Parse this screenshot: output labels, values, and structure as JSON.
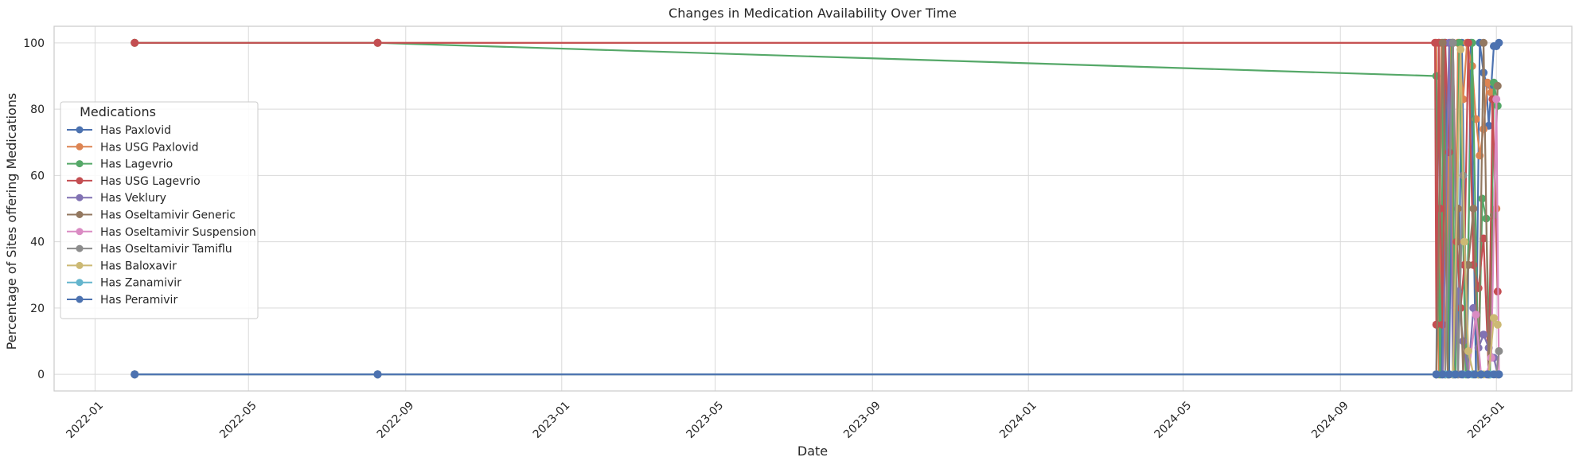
{
  "chart_data": {
    "type": "line",
    "title": "Changes in Medication Availability Over Time",
    "xlabel": "Date",
    "ylabel": "Percentage of Sites offering Medications",
    "x_tick_labels": [
      "2022-01",
      "2022-05",
      "2022-09",
      "2023-01",
      "2023-05",
      "2023-09",
      "2024-01",
      "2024-05",
      "2024-09",
      "2025-01"
    ],
    "y_tick_labels": [
      "0",
      "20",
      "40",
      "60",
      "80",
      "100"
    ],
    "ylim": [
      -5,
      105
    ],
    "xlim": [
      "2021-11-30",
      "2025-03-01"
    ],
    "grid": true,
    "legend_title": "Medications",
    "legend_placement": "center-left",
    "marker": "circle",
    "series": [
      {
        "name": "Has Paxlovid",
        "color": "#4c72b0",
        "points": [
          [
            "2022-02-01",
            0
          ],
          [
            "2022-08-10",
            0
          ],
          [
            "2024-11-15",
            0
          ],
          [
            "2024-11-17",
            100
          ],
          [
            "2024-11-19",
            0
          ],
          [
            "2024-11-22",
            100
          ],
          [
            "2024-11-25",
            0
          ],
          [
            "2024-11-28",
            100
          ],
          [
            "2024-12-02",
            0
          ],
          [
            "2024-12-05",
            100
          ],
          [
            "2024-12-09",
            0
          ],
          [
            "2024-12-12",
            100
          ],
          [
            "2024-12-16",
            0
          ],
          [
            "2024-12-19",
            100
          ],
          [
            "2024-12-22",
            91
          ],
          [
            "2024-12-24",
            88
          ],
          [
            "2024-12-26",
            75
          ],
          [
            "2024-12-28",
            87
          ],
          [
            "2024-12-30",
            99
          ],
          [
            "2025-01-01",
            99
          ],
          [
            "2025-01-03",
            100
          ]
        ]
      },
      {
        "name": "Has USG Paxlovid",
        "color": "#dd8452",
        "points": [
          [
            "2022-02-01",
            100
          ],
          [
            "2022-08-10",
            100
          ],
          [
            "2024-11-15",
            100
          ],
          [
            "2024-11-17",
            0
          ],
          [
            "2024-11-19",
            100
          ],
          [
            "2024-11-22",
            0
          ],
          [
            "2024-11-26",
            100
          ],
          [
            "2024-11-29",
            0
          ],
          [
            "2024-12-02",
            100
          ],
          [
            "2024-12-06",
            83
          ],
          [
            "2024-12-09",
            100
          ],
          [
            "2024-12-13",
            93
          ],
          [
            "2024-12-16",
            77
          ],
          [
            "2024-12-19",
            66
          ],
          [
            "2024-12-22",
            74
          ],
          [
            "2024-12-25",
            88
          ],
          [
            "2024-12-28",
            85
          ],
          [
            "2025-01-01",
            50
          ]
        ]
      },
      {
        "name": "Has Lagevrio",
        "color": "#55a868",
        "points": [
          [
            "2022-02-01",
            100
          ],
          [
            "2022-08-10",
            100
          ],
          [
            "2024-11-15",
            90
          ],
          [
            "2024-11-18",
            0
          ],
          [
            "2024-11-21",
            100
          ],
          [
            "2024-11-24",
            0
          ],
          [
            "2024-11-27",
            100
          ],
          [
            "2024-11-30",
            0
          ],
          [
            "2024-12-03",
            100
          ],
          [
            "2024-12-08",
            0
          ],
          [
            "2024-12-13",
            100
          ],
          [
            "2024-12-18",
            0
          ],
          [
            "2024-12-21",
            53
          ],
          [
            "2024-12-24",
            47
          ],
          [
            "2024-12-27",
            0
          ],
          [
            "2024-12-30",
            88
          ],
          [
            "2025-01-02",
            81
          ]
        ]
      },
      {
        "name": "Has USG Lagevrio",
        "color": "#c44e52",
        "points": [
          [
            "2022-02-01",
            100
          ],
          [
            "2022-08-10",
            100
          ],
          [
            "2024-11-14",
            100
          ],
          [
            "2024-11-15",
            15
          ],
          [
            "2024-11-17",
            100
          ],
          [
            "2024-11-18",
            50
          ],
          [
            "2024-11-20",
            15
          ],
          [
            "2024-11-22",
            100
          ],
          [
            "2024-11-25",
            67
          ],
          [
            "2024-11-28",
            100
          ],
          [
            "2024-12-01",
            40
          ],
          [
            "2024-12-04",
            20
          ],
          [
            "2024-12-07",
            33
          ],
          [
            "2024-12-10",
            100
          ],
          [
            "2024-12-14",
            33
          ],
          [
            "2024-12-18",
            26
          ],
          [
            "2024-12-22",
            41
          ],
          [
            "2024-12-26",
            0
          ],
          [
            "2024-12-29",
            83
          ],
          [
            "2025-01-02",
            25
          ]
        ]
      },
      {
        "name": "Has Veklury",
        "color": "#8172b3",
        "points": [
          [
            "2022-02-01",
            0
          ],
          [
            "2022-08-10",
            0
          ],
          [
            "2024-11-15",
            0
          ],
          [
            "2024-11-20",
            0
          ],
          [
            "2024-11-25",
            100
          ],
          [
            "2024-11-28",
            0
          ],
          [
            "2024-12-02",
            25
          ],
          [
            "2024-12-06",
            10
          ],
          [
            "2024-12-10",
            0
          ],
          [
            "2024-12-14",
            20
          ],
          [
            "2024-12-18",
            8
          ],
          [
            "2024-12-22",
            12
          ],
          [
            "2024-12-26",
            8
          ],
          [
            "2024-12-30",
            5
          ],
          [
            "2025-01-02",
            0
          ]
        ]
      },
      {
        "name": "Has Oseltamivir Generic",
        "color": "#937860",
        "points": [
          [
            "2022-02-01",
            0
          ],
          [
            "2022-08-10",
            0
          ],
          [
            "2024-11-15",
            0
          ],
          [
            "2024-11-20",
            100
          ],
          [
            "2024-11-24",
            0
          ],
          [
            "2024-11-28",
            0
          ],
          [
            "2024-12-02",
            50
          ],
          [
            "2024-12-06",
            0
          ],
          [
            "2024-12-10",
            33
          ],
          [
            "2024-12-14",
            50
          ],
          [
            "2024-12-18",
            0
          ],
          [
            "2024-12-22",
            100
          ],
          [
            "2024-12-26",
            0
          ],
          [
            "2024-12-30",
            48
          ],
          [
            "2025-01-02",
            87
          ]
        ]
      },
      {
        "name": "Has Oseltamivir Suspension",
        "color": "#da8bc3",
        "points": [
          [
            "2022-02-01",
            0
          ],
          [
            "2022-08-10",
            0
          ],
          [
            "2024-11-15",
            0
          ],
          [
            "2024-11-22",
            0
          ],
          [
            "2024-11-28",
            0
          ],
          [
            "2024-12-04",
            0
          ],
          [
            "2024-12-10",
            0
          ],
          [
            "2024-12-16",
            18
          ],
          [
            "2024-12-20",
            0
          ],
          [
            "2024-12-24",
            0
          ],
          [
            "2024-12-28",
            5
          ],
          [
            "2025-01-01",
            83
          ],
          [
            "2025-01-03",
            0
          ]
        ]
      },
      {
        "name": "Has Oseltamivir Tamiflu",
        "color": "#8c8c8c",
        "points": [
          [
            "2022-02-01",
            0
          ],
          [
            "2022-08-10",
            0
          ],
          [
            "2024-11-15",
            0
          ],
          [
            "2024-11-22",
            0
          ],
          [
            "2024-11-28",
            100
          ],
          [
            "2024-12-02",
            0
          ],
          [
            "2024-12-06",
            60
          ],
          [
            "2024-12-10",
            0
          ],
          [
            "2024-12-14",
            0
          ],
          [
            "2024-12-20",
            0
          ],
          [
            "2024-12-26",
            0
          ],
          [
            "2025-01-01",
            0
          ],
          [
            "2025-01-03",
            7
          ]
        ]
      },
      {
        "name": "Has Baloxavir",
        "color": "#ccb974",
        "points": [
          [
            "2022-02-01",
            0
          ],
          [
            "2022-08-10",
            0
          ],
          [
            "2024-11-15",
            0
          ],
          [
            "2024-11-22",
            0
          ],
          [
            "2024-11-28",
            0
          ],
          [
            "2024-12-04",
            98
          ],
          [
            "2024-12-07",
            40
          ],
          [
            "2024-12-10",
            7
          ],
          [
            "2024-12-14",
            0
          ],
          [
            "2024-12-18",
            0
          ],
          [
            "2024-12-22",
            0
          ],
          [
            "2024-12-26",
            0
          ],
          [
            "2024-12-30",
            17
          ],
          [
            "2025-01-02",
            15
          ]
        ]
      },
      {
        "name": "Has Zanamivir",
        "color": "#64b5cd",
        "points": [
          [
            "2022-02-01",
            0
          ],
          [
            "2022-08-10",
            0
          ],
          [
            "2024-11-15",
            0
          ],
          [
            "2024-11-22",
            0
          ],
          [
            "2024-11-29",
            0
          ],
          [
            "2024-12-06",
            0
          ],
          [
            "2024-12-13",
            0
          ],
          [
            "2024-12-20",
            0
          ],
          [
            "2024-12-27",
            0
          ],
          [
            "2025-01-03",
            0
          ]
        ]
      },
      {
        "name": "Has Peramivir",
        "color": "#4c72b0",
        "points": [
          [
            "2022-02-01",
            0
          ],
          [
            "2022-08-10",
            0
          ],
          [
            "2024-11-15",
            0
          ],
          [
            "2024-11-20",
            0
          ],
          [
            "2024-11-25",
            0
          ],
          [
            "2024-11-30",
            0
          ],
          [
            "2024-12-05",
            0
          ],
          [
            "2024-12-10",
            0
          ],
          [
            "2024-12-15",
            0
          ],
          [
            "2024-12-20",
            0
          ],
          [
            "2024-12-25",
            0
          ],
          [
            "2024-12-30",
            0
          ],
          [
            "2025-01-03",
            0
          ]
        ]
      }
    ]
  }
}
